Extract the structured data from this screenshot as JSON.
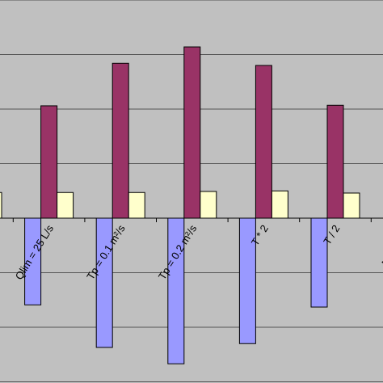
{
  "chart_data": {
    "type": "bar",
    "categories": [
      null,
      "Qlim = 25 L/s",
      "Tp = 0.1 m²/s",
      "Tp = 0.2 m²/s",
      "T * 2",
      "T / 2",
      "No Latera"
    ],
    "series": [
      {
        "color": "#9999ff",
        "values": [
          null,
          -1.59,
          -2.37,
          -2.67,
          -2.3,
          -1.63,
          null
        ]
      },
      {
        "color": "#993366",
        "values": [
          null,
          2.06,
          2.84,
          3.14,
          2.8,
          2.07,
          null
        ]
      },
      {
        "color": "#ffffcc",
        "values": [
          0.47,
          0.47,
          0.47,
          0.49,
          0.5,
          0.46,
          null
        ]
      }
    ],
    "ylim": [
      -3,
      4
    ],
    "yticks": [
      -3,
      -2,
      -1,
      0,
      1,
      2,
      3,
      4
    ],
    "grid": true
  }
}
